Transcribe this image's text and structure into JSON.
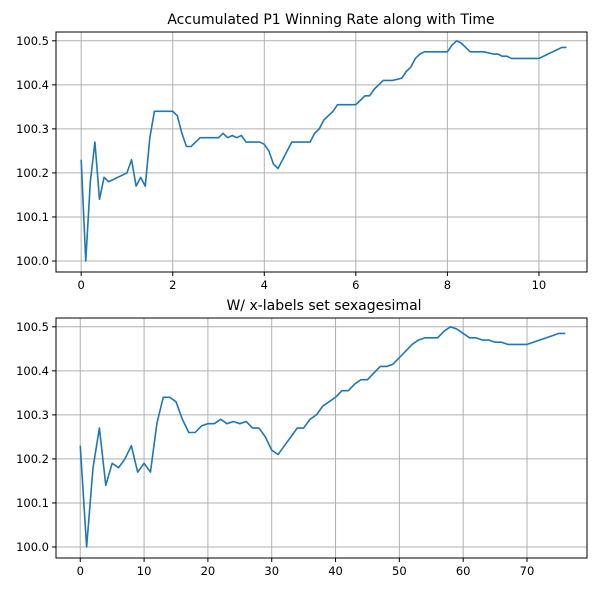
{
  "chart_data": [
    {
      "type": "line",
      "title": "Accumulated P1 Winning Rate along with Time",
      "xlabel": "",
      "ylabel": "",
      "xlim": [
        -0.55,
        11.05
      ],
      "ylim": [
        99.975,
        100.52
      ],
      "xticks": [
        0,
        2,
        4,
        6,
        8,
        10
      ],
      "xtick_labels": [
        "0",
        "2",
        "4",
        "6",
        "8",
        "10"
      ],
      "yticks": [
        100.0,
        100.1,
        100.2,
        100.3,
        100.4,
        100.5
      ],
      "ytick_labels": [
        "100.0",
        "100.1",
        "100.2",
        "100.3",
        "100.4",
        "100.5"
      ],
      "grid": true,
      "series": [
        {
          "color": "#1f77b4",
          "x": [
            0,
            0.1,
            0.2,
            0.3,
            0.4,
            0.5,
            0.6,
            0.8,
            1.0,
            1.1,
            1.2,
            1.3,
            1.4,
            1.5,
            1.6,
            1.8,
            2.0,
            2.1,
            2.2,
            2.3,
            2.4,
            2.5,
            2.6,
            2.8,
            3.0,
            3.1,
            3.2,
            3.3,
            3.4,
            3.5,
            3.6,
            3.7,
            3.8,
            3.9,
            4.0,
            4.1,
            4.2,
            4.3,
            4.4,
            4.5,
            4.6,
            4.8,
            5.0,
            5.1,
            5.2,
            5.3,
            5.4,
            5.5,
            5.6,
            5.8,
            6.0,
            6.1,
            6.2,
            6.3,
            6.4,
            6.5,
            6.6,
            6.8,
            7.0,
            7.1,
            7.2,
            7.3,
            7.4,
            7.5,
            7.6,
            7.8,
            8.0,
            8.1,
            8.2,
            8.3,
            8.4,
            8.5,
            8.6,
            8.8,
            9.0,
            9.1,
            9.2,
            9.3,
            9.4,
            9.5,
            9.6,
            9.8,
            10.0,
            10.1,
            10.2,
            10.3,
            10.4,
            10.5,
            10.6
          ],
          "y": [
            100.23,
            100.0,
            100.18,
            100.27,
            100.14,
            100.19,
            100.18,
            100.19,
            100.2,
            100.23,
            100.17,
            100.19,
            100.17,
            100.28,
            100.34,
            100.34,
            100.34,
            100.33,
            100.29,
            100.26,
            100.26,
            100.27,
            100.28,
            100.28,
            100.28,
            100.29,
            100.28,
            100.285,
            100.28,
            100.285,
            100.27,
            100.27,
            100.27,
            100.27,
            100.265,
            100.25,
            100.22,
            100.21,
            100.23,
            100.25,
            100.27,
            100.27,
            100.27,
            100.29,
            100.3,
            100.32,
            100.33,
            100.34,
            100.355,
            100.355,
            100.355,
            100.365,
            100.375,
            100.375,
            100.39,
            100.4,
            100.41,
            100.41,
            100.415,
            100.43,
            100.44,
            100.46,
            100.47,
            100.475,
            100.475,
            100.475,
            100.475,
            100.49,
            100.5,
            100.495,
            100.485,
            100.475,
            100.475,
            100.475,
            100.47,
            100.47,
            100.465,
            100.465,
            100.46,
            100.46,
            100.46,
            100.46,
            100.46,
            100.465,
            100.47,
            100.475,
            100.48,
            100.485,
            100.485
          ]
        }
      ]
    },
    {
      "type": "line",
      "title": "W/ x-labels set sexagesimal",
      "xlabel": "",
      "ylabel": "",
      "xlim": [
        -3.8,
        79.4
      ],
      "ylim": [
        99.975,
        100.52
      ],
      "xticks": [
        0,
        10,
        20,
        30,
        40,
        50,
        60,
        70
      ],
      "xtick_labels": [
        "0",
        "10",
        "20",
        "30",
        "40",
        "50",
        "60",
        "70"
      ],
      "yticks": [
        100.0,
        100.1,
        100.2,
        100.3,
        100.4,
        100.5
      ],
      "ytick_labels": [
        "100.0",
        "100.1",
        "100.2",
        "100.3",
        "100.4",
        "100.5"
      ],
      "grid": true,
      "series": [
        {
          "color": "#1f77b4",
          "x": [
            0,
            1,
            2,
            3,
            4,
            5,
            6,
            7,
            8,
            9,
            10,
            11,
            12,
            13,
            14,
            15,
            16,
            17,
            18,
            19,
            20,
            21,
            22,
            23,
            24,
            25,
            26,
            27,
            28,
            29,
            30,
            31,
            32,
            33,
            34,
            35,
            36,
            37,
            38,
            39,
            40,
            41,
            42,
            43,
            44,
            45,
            46,
            47,
            48,
            49,
            50,
            51,
            52,
            53,
            54,
            55,
            56,
            57,
            58,
            59,
            60,
            61,
            62,
            63,
            64,
            65,
            66,
            67,
            68,
            69,
            70,
            71,
            72,
            73,
            74,
            75,
            76
          ],
          "y": [
            100.23,
            100.0,
            100.18,
            100.27,
            100.14,
            100.19,
            100.18,
            100.2,
            100.23,
            100.17,
            100.19,
            100.17,
            100.28,
            100.34,
            100.34,
            100.33,
            100.29,
            100.26,
            100.26,
            100.275,
            100.28,
            100.28,
            100.29,
            100.28,
            100.285,
            100.28,
            100.285,
            100.27,
            100.27,
            100.25,
            100.22,
            100.21,
            100.23,
            100.25,
            100.27,
            100.27,
            100.29,
            100.3,
            100.32,
            100.33,
            100.34,
            100.355,
            100.355,
            100.37,
            100.38,
            100.38,
            100.395,
            100.41,
            100.41,
            100.415,
            100.43,
            100.445,
            100.46,
            100.47,
            100.475,
            100.475,
            100.475,
            100.49,
            100.5,
            100.495,
            100.485,
            100.475,
            100.475,
            100.47,
            100.47,
            100.465,
            100.465,
            100.46,
            100.46,
            100.46,
            100.46,
            100.465,
            100.47,
            100.475,
            100.48,
            100.485,
            100.485
          ]
        }
      ]
    }
  ]
}
